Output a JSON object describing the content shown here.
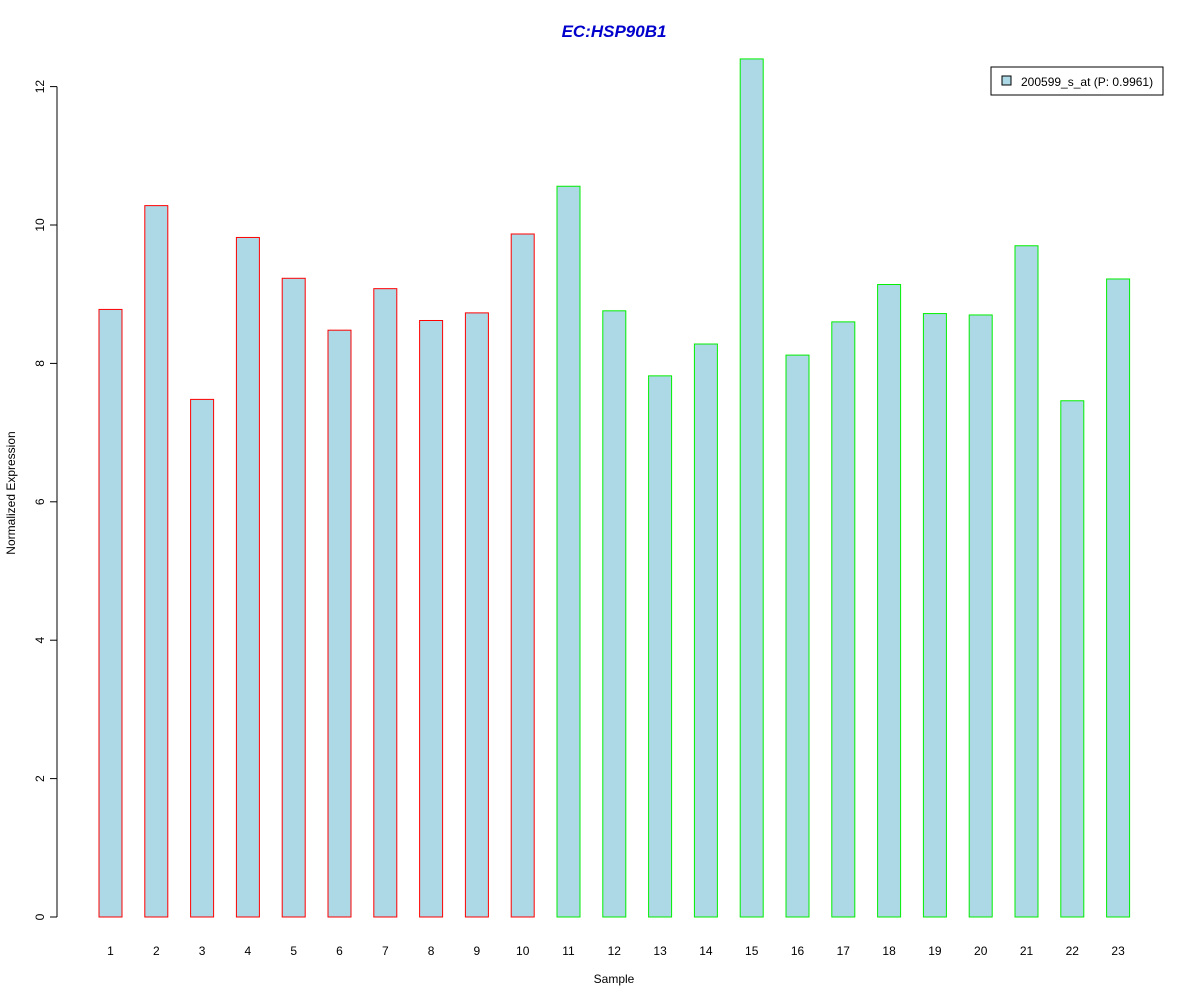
{
  "chart_data": {
    "type": "bar",
    "title": "EC:HSP90B1",
    "xlabel": "Sample",
    "ylabel": "Normalized Expression",
    "categories": [
      "1",
      "2",
      "3",
      "4",
      "5",
      "6",
      "7",
      "8",
      "9",
      "10",
      "11",
      "12",
      "13",
      "14",
      "15",
      "16",
      "17",
      "18",
      "19",
      "20",
      "21",
      "22",
      "23"
    ],
    "series": [
      {
        "name": "200599_s_at (P: 0.9961)",
        "values": [
          8.78,
          10.28,
          7.48,
          9.82,
          9.23,
          8.48,
          9.08,
          8.62,
          8.73,
          9.87,
          10.56,
          8.76,
          7.82,
          8.28,
          12.4,
          8.12,
          8.6,
          9.14,
          8.72,
          8.7,
          9.7,
          7.46,
          9.22
        ]
      }
    ],
    "bar_outline_groups": [
      "red",
      "red",
      "red",
      "red",
      "red",
      "red",
      "red",
      "red",
      "red",
      "red",
      "green",
      "green",
      "green",
      "green",
      "green",
      "green",
      "green",
      "green",
      "green",
      "green",
      "green",
      "green",
      "green"
    ],
    "yticks": [
      0,
      2,
      4,
      6,
      8,
      10,
      12
    ],
    "ylim": [
      0,
      12.4
    ],
    "legend_position": "top-right",
    "grid": false
  },
  "colors": {
    "title": "#0000cc",
    "bar_fill": "#add8e6",
    "red": "#ff0000",
    "green": "#00ee00",
    "axis": "#000000"
  }
}
